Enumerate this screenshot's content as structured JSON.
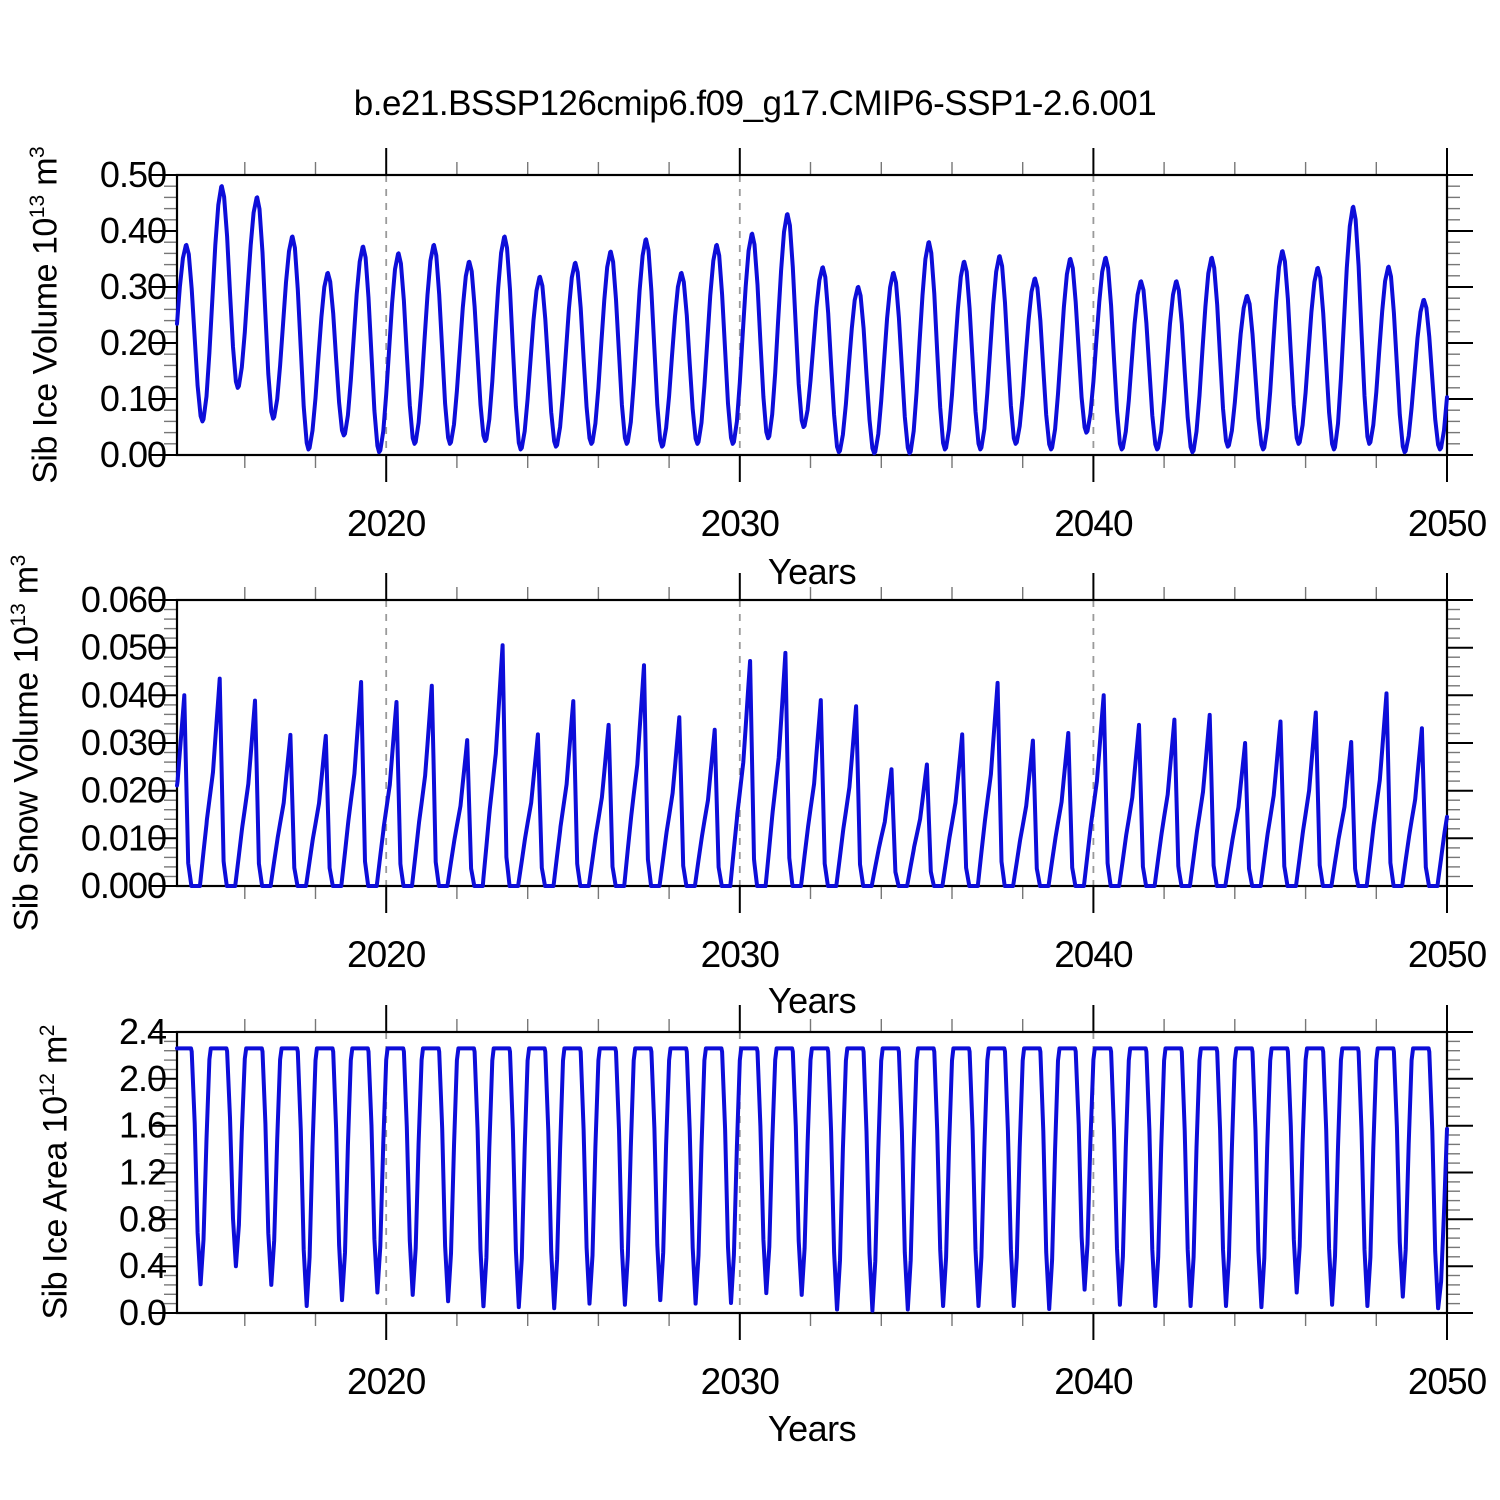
{
  "title": "b.e21.BSSP126cmip6.f09_g17.CMIP6-SSP1-2.6.001",
  "xlabel": "Years",
  "line_color": "#0d0dd9",
  "grid_color": "#9a9a9a",
  "axis_color": "#000000",
  "minor_tick_color": "#777777",
  "background": "#ffffff",
  "x_axis": {
    "start": 2014.083,
    "end": 2050.0,
    "major_ticks": [
      2020,
      2030,
      2040,
      2050
    ],
    "major_tick_labels": [
      "2020",
      "2030",
      "2040",
      "2050"
    ],
    "minor_step_years": 2,
    "dashed_gridlines": [
      2020,
      2030,
      2040
    ]
  },
  "chart_data": [
    {
      "type": "line",
      "panel": "ice_volume",
      "series_name": "Sib Ice Volume",
      "ylabel_parts": [
        [
          "Sib Ice Volume 10",
          0
        ],
        [
          "13",
          1
        ],
        [
          " m",
          0
        ],
        [
          "3",
          1
        ]
      ],
      "ytick_labels": [
        "0.00",
        "0.10",
        "0.20",
        "0.30",
        "0.40",
        "0.50"
      ],
      "ymax": 0.5,
      "yminor_step": 0.02,
      "xlabel": "Years",
      "time_resolution": "monthly seasonal cycle",
      "shape": "sinusoid",
      "peak_phase": 0.35,
      "trough_phase": 0.8,
      "lead_in": [
        2013.8,
        0.08
      ],
      "tail": [
        2050.35,
        0.33
      ],
      "years": [
        2014,
        2015,
        2016,
        2017,
        2018,
        2019,
        2020,
        2021,
        2022,
        2023,
        2024,
        2025,
        2026,
        2027,
        2028,
        2029,
        2030,
        2031,
        2032,
        2033,
        2034,
        2035,
        2036,
        2037,
        2038,
        2039,
        2040,
        2041,
        2042,
        2043,
        2044,
        2045,
        2046,
        2047,
        2048,
        2049
      ],
      "annual_peaks": [
        0.375,
        0.48,
        0.46,
        0.39,
        0.325,
        0.372,
        0.36,
        0.375,
        0.345,
        0.39,
        0.318,
        0.343,
        0.363,
        0.385,
        0.325,
        0.375,
        0.395,
        0.43,
        0.335,
        0.3,
        0.325,
        0.38,
        0.345,
        0.355,
        0.315,
        0.35,
        0.352,
        0.31,
        0.31,
        0.352,
        0.284,
        0.364,
        0.334,
        0.443,
        0.336,
        0.277
      ],
      "annual_troughs": [
        0.06,
        0.12,
        0.065,
        0.01,
        0.035,
        0.005,
        0.02,
        0.02,
        0.025,
        0.01,
        0.015,
        0.02,
        0.02,
        0.015,
        0.02,
        0.02,
        0.03,
        0.05,
        0.005,
        0.003,
        0.003,
        0.01,
        0.01,
        0.02,
        0.01,
        0.04,
        0.01,
        0.01,
        0.005,
        0.015,
        0.01,
        0.02,
        0.01,
        0.02,
        0.005,
        0.01
      ]
    },
    {
      "type": "line",
      "panel": "snow_volume",
      "series_name": "Sib Snow Volume",
      "ylabel_parts": [
        [
          "Sib Snow Volume 10",
          0
        ],
        [
          "13",
          1
        ],
        [
          " m",
          0
        ],
        [
          "3",
          1
        ]
      ],
      "ytick_labels": [
        "0.000",
        "0.010",
        "0.020",
        "0.030",
        "0.040",
        "0.050",
        "0.060"
      ],
      "ymax": 0.06,
      "yminor_step": 0.002,
      "xlabel": "Years",
      "time_resolution": "monthly seasonal cycle",
      "shape": "snow",
      "peak_phase": 0.29,
      "summer_value": 0.0,
      "years": [
        2014,
        2015,
        2016,
        2017,
        2018,
        2019,
        2020,
        2021,
        2022,
        2023,
        2024,
        2025,
        2026,
        2027,
        2028,
        2029,
        2030,
        2031,
        2032,
        2033,
        2034,
        2035,
        2036,
        2037,
        2038,
        2039,
        2040,
        2041,
        2042,
        2043,
        2044,
        2045,
        2046,
        2047,
        2048,
        2049
      ],
      "annual_peaks": [
        0.04,
        0.0435,
        0.0389,
        0.0317,
        0.0315,
        0.0428,
        0.0386,
        0.042,
        0.0306,
        0.0505,
        0.0318,
        0.0388,
        0.0338,
        0.0463,
        0.0354,
        0.0328,
        0.0472,
        0.0489,
        0.039,
        0.0377,
        0.0245,
        0.0255,
        0.0318,
        0.0426,
        0.0305,
        0.0321,
        0.04,
        0.0338,
        0.0349,
        0.0359,
        0.03,
        0.0345,
        0.0364,
        0.0302,
        0.0404,
        0.0331
      ]
    },
    {
      "type": "line",
      "panel": "ice_area",
      "series_name": "Sib Ice Area",
      "ylabel_parts": [
        [
          "Sib Ice Area 10",
          0
        ],
        [
          "12",
          1
        ],
        [
          " m",
          0
        ],
        [
          "2",
          1
        ]
      ],
      "ytick_labels": [
        "0.0",
        "0.4",
        "0.8",
        "1.2",
        "1.6",
        "2.0",
        "2.4"
      ],
      "ymax": 2.4,
      "yminor_step": 0.08,
      "xlabel": "Years",
      "time_resolution": "monthly seasonal cycle",
      "shape": "plateau",
      "winter_plateau": 2.26,
      "min_phase": 0.75,
      "years": [
        2014,
        2015,
        2016,
        2017,
        2018,
        2019,
        2020,
        2021,
        2022,
        2023,
        2024,
        2025,
        2026,
        2027,
        2028,
        2029,
        2030,
        2031,
        2032,
        2033,
        2034,
        2035,
        2036,
        2037,
        2038,
        2039,
        2040,
        2041,
        2042,
        2043,
        2044,
        2045,
        2046,
        2047,
        2048,
        2049
      ],
      "annual_minima": [
        0.245,
        0.4,
        0.24,
        0.06,
        0.11,
        0.175,
        0.155,
        0.1,
        0.057,
        0.05,
        0.04,
        0.08,
        0.07,
        0.11,
        0.08,
        0.085,
        0.17,
        0.155,
        0.03,
        0.02,
        0.03,
        0.06,
        0.06,
        0.06,
        0.034,
        0.2,
        0.07,
        0.06,
        0.06,
        0.06,
        0.05,
        0.175,
        0.07,
        0.06,
        0.14,
        0.04
      ]
    }
  ]
}
